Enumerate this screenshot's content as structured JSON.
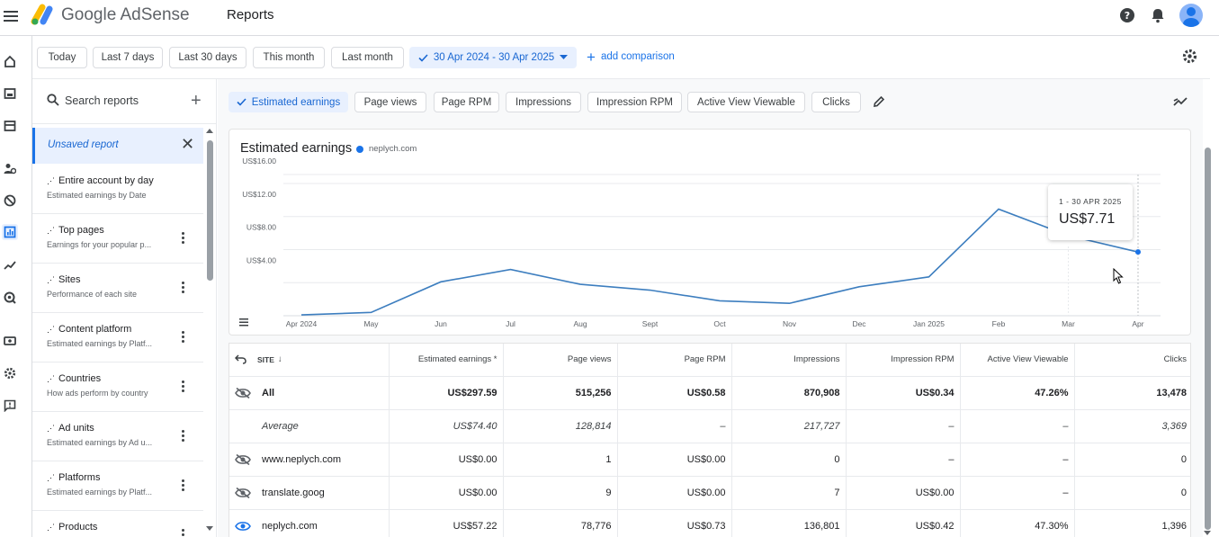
{
  "app": {
    "brand": "Google AdSense",
    "page_title": "Reports",
    "colors": {
      "accent": "#1a73e8",
      "selected_bg": "#e8f0fe"
    }
  },
  "topbar_icons": [
    "help-icon",
    "bell-icon",
    "avatar"
  ],
  "left_rail": [
    "home-icon",
    "ad-icon",
    "sites-icon",
    "privacy-icon",
    "block-icon",
    "reports-icon",
    "trend-icon",
    "optimize-icon",
    "payments-icon",
    "settings-icon",
    "feedback-icon"
  ],
  "date_range": {
    "presets": [
      "Today",
      "Last 7 days",
      "Last 30 days",
      "This month",
      "Last month"
    ],
    "selected": "30 Apr 2024 - 30 Apr 2025",
    "add_comparison": "add comparison"
  },
  "sidebar": {
    "search_placeholder": "Search reports",
    "unsaved_label": "Unsaved report",
    "reports": [
      {
        "title": "Entire account by day",
        "subtitle": "Estimated earnings by Date"
      },
      {
        "title": "Top pages",
        "subtitle": "Earnings for your popular p..."
      },
      {
        "title": "Sites",
        "subtitle": "Performance of each site"
      },
      {
        "title": "Content platform",
        "subtitle": "Estimated earnings by Platf..."
      },
      {
        "title": "Countries",
        "subtitle": "How ads perform by country"
      },
      {
        "title": "Ad units",
        "subtitle": "Estimated earnings by Ad u..."
      },
      {
        "title": "Platforms",
        "subtitle": "Estimated earnings by Platf..."
      },
      {
        "title": "Products",
        "subtitle": ""
      }
    ]
  },
  "metrics": {
    "chips": [
      "Estimated earnings",
      "Page views",
      "Page RPM",
      "Impressions",
      "Impression RPM",
      "Active View Viewable",
      "Clicks"
    ],
    "selected": "Estimated earnings"
  },
  "chart_data": {
    "type": "line",
    "title": "Estimated earnings",
    "legend": "neplych.com",
    "x": [
      "Apr 2024",
      "May",
      "Jun",
      "Jul",
      "Aug",
      "Sept",
      "Oct",
      "Nov",
      "Dec",
      "Jan 2025",
      "Feb",
      "Mar",
      "Apr"
    ],
    "series": [
      {
        "name": "neplych.com",
        "values": [
          0.1,
          0.4,
          4.1,
          5.6,
          3.8,
          3.1,
          1.8,
          1.5,
          3.5,
          4.7,
          12.9,
          9.7,
          7.71
        ]
      }
    ],
    "y_ticks": [
      "US$4.00",
      "US$8.00",
      "US$12.00",
      "US$16.00"
    ],
    "ylim": [
      0,
      16
    ],
    "grid": true,
    "tooltip": {
      "date": "1 - 30 APR 2025",
      "value": "US$7.71"
    }
  },
  "table": {
    "columns": [
      "SITE",
      "Estimated earnings *",
      "Page views",
      "Page RPM",
      "Impressions",
      "Impression RPM",
      "Active View Viewable",
      "Clicks"
    ],
    "rows": [
      {
        "type": "total",
        "icon": "visibility-off-icon",
        "cells": [
          "All",
          "US$297.59",
          "515,256",
          "US$0.58",
          "870,908",
          "US$0.34",
          "47.26%",
          "13,478"
        ]
      },
      {
        "type": "average",
        "icon": "",
        "cells": [
          "Average",
          "US$74.40",
          "128,814",
          "–",
          "217,727",
          "–",
          "–",
          "3,369"
        ]
      },
      {
        "type": "row",
        "icon": "visibility-off-icon",
        "cells": [
          "www.neplych.com",
          "US$0.00",
          "1",
          "US$0.00",
          "0",
          "–",
          "–",
          "0"
        ]
      },
      {
        "type": "row",
        "icon": "visibility-off-icon",
        "cells": [
          "translate.goog",
          "US$0.00",
          "9",
          "US$0.00",
          "7",
          "US$0.00",
          "–",
          "0"
        ]
      },
      {
        "type": "row",
        "icon": "visibility-icon",
        "cells": [
          "neplych.com",
          "US$57.22",
          "78,776",
          "US$0.73",
          "136,801",
          "US$0.42",
          "47.30%",
          "1,396"
        ]
      }
    ]
  }
}
